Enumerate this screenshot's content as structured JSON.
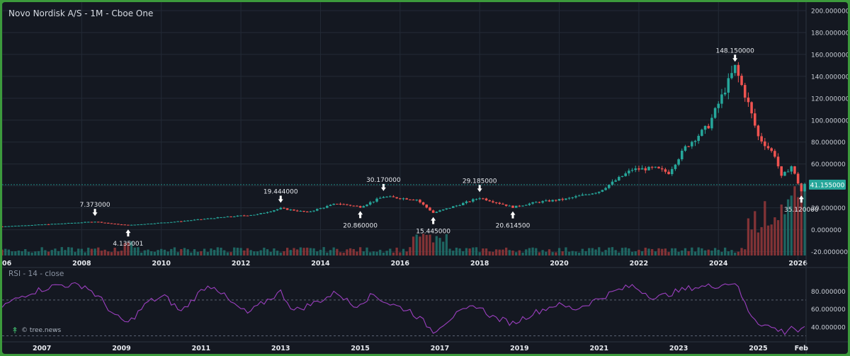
{
  "title": "Novo Nordisk A/S - 1M - Cboe One",
  "rsi_title": "RSI - 14 - close",
  "watermark": "© tree.news",
  "colors": {
    "background": "#141821",
    "up": "#26a69a",
    "down": "#ef5350",
    "rsi": "#9b3fbf",
    "price_line": "#26a69a",
    "grid": "#232a36",
    "frame": "#3c9a3c"
  },
  "chart_data": [
    {
      "type": "candlestick",
      "title": "Novo Nordisk A/S - 1M - Cboe One",
      "x_range": [
        "2006-01",
        "2026-03"
      ],
      "ylim": [
        -30,
        200
      ],
      "y_ticks": [
        200,
        180,
        160,
        140,
        120,
        100,
        80,
        60,
        40,
        20,
        0,
        -20
      ],
      "y_tick_labels": [
        "200.000000",
        "180.000000",
        "160.000000",
        "140.000000",
        "120.000000",
        "100.000000",
        "80.000000",
        "60.000000",
        "40.000000",
        "20.000000",
        "0.000000",
        "-20.000000"
      ],
      "x_tick_labels": [
        "2006",
        "2008",
        "2010",
        "2012",
        "2014",
        "2016",
        "2018",
        "2020",
        "2022",
        "2024",
        "2026"
      ],
      "last_price": 41.155,
      "last_price_label": "41.155000",
      "price_path": [
        {
          "t": "2006-01",
          "v": 3.0
        },
        {
          "t": "2007-06",
          "v": 5.5
        },
        {
          "t": "2008-05",
          "v": 7.373
        },
        {
          "t": "2008-11",
          "v": 5.2
        },
        {
          "t": "2009-03",
          "v": 4.135
        },
        {
          "t": "2010-06",
          "v": 7.5
        },
        {
          "t": "2011-06",
          "v": 11.0
        },
        {
          "t": "2012-06",
          "v": 14.0
        },
        {
          "t": "2013-01",
          "v": 19.444
        },
        {
          "t": "2013-09",
          "v": 16.0
        },
        {
          "t": "2014-06",
          "v": 24.0
        },
        {
          "t": "2015-01",
          "v": 20.86
        },
        {
          "t": "2015-08",
          "v": 30.17
        },
        {
          "t": "2016-06",
          "v": 27.5
        },
        {
          "t": "2016-11",
          "v": 15.445
        },
        {
          "t": "2017-06",
          "v": 22.0
        },
        {
          "t": "2018-01",
          "v": 29.185
        },
        {
          "t": "2018-11",
          "v": 20.6145
        },
        {
          "t": "2019-06",
          "v": 25.0
        },
        {
          "t": "2020-03",
          "v": 28.0
        },
        {
          "t": "2021-01",
          "v": 35.0
        },
        {
          "t": "2021-11",
          "v": 55.0
        },
        {
          "t": "2022-06",
          "v": 56.0
        },
        {
          "t": "2022-10",
          "v": 52.0
        },
        {
          "t": "2023-03",
          "v": 75.0
        },
        {
          "t": "2023-10",
          "v": 95.0
        },
        {
          "t": "2024-06",
          "v": 148.15
        },
        {
          "t": "2024-10",
          "v": 115.0
        },
        {
          "t": "2025-01",
          "v": 85.0
        },
        {
          "t": "2025-06",
          "v": 68.0
        },
        {
          "t": "2025-08",
          "v": 48.0
        },
        {
          "t": "2025-11",
          "v": 58.0
        },
        {
          "t": "2026-02",
          "v": 35.12
        },
        {
          "t": "2026-03",
          "v": 41.155
        }
      ],
      "annotations": [
        {
          "t": "2008-05",
          "v": 7.373,
          "label": "7.373000",
          "kind": "high"
        },
        {
          "t": "2009-03",
          "v": 4.135,
          "label": "4.135001",
          "kind": "low"
        },
        {
          "t": "2013-01",
          "v": 19.444,
          "label": "19.444000",
          "kind": "high"
        },
        {
          "t": "2015-01",
          "v": 20.86,
          "label": "20.860000",
          "kind": "low"
        },
        {
          "t": "2015-08",
          "v": 30.17,
          "label": "30.170000",
          "kind": "high"
        },
        {
          "t": "2016-11",
          "v": 15.445,
          "label": "15.445000",
          "kind": "low"
        },
        {
          "t": "2018-01",
          "v": 29.185,
          "label": "29.185000",
          "kind": "high"
        },
        {
          "t": "2018-11",
          "v": 20.6145,
          "label": "20.614500",
          "kind": "low"
        },
        {
          "t": "2024-06",
          "v": 148.15,
          "label": "148.150000",
          "kind": "high"
        },
        {
          "t": "2026-02",
          "v": 35.12,
          "label": "35.120000",
          "kind": "low"
        }
      ]
    },
    {
      "type": "line",
      "title": "RSI - 14 - close",
      "ylim": [
        28,
        100
      ],
      "y_ticks": [
        80,
        60,
        40
      ],
      "y_tick_labels": [
        "80.000000",
        "60.000000",
        "40.000000"
      ],
      "reference_lines": [
        70,
        30
      ],
      "x_range": [
        "2006-01",
        "2026-03"
      ],
      "x_tick_labels": [
        "2007",
        "2009",
        "2011",
        "2013",
        "2015",
        "2017",
        "2019",
        "2021",
        "2023",
        "2025",
        "Feb"
      ],
      "points": [
        {
          "t": "2006-01",
          "v": 63
        },
        {
          "t": "2006-09",
          "v": 78
        },
        {
          "t": "2007-06",
          "v": 87
        },
        {
          "t": "2008-02",
          "v": 86
        },
        {
          "t": "2008-07",
          "v": 70
        },
        {
          "t": "2008-11",
          "v": 52
        },
        {
          "t": "2009-03",
          "v": 44
        },
        {
          "t": "2009-09",
          "v": 68
        },
        {
          "t": "2010-02",
          "v": 74
        },
        {
          "t": "2010-07",
          "v": 57
        },
        {
          "t": "2011-02",
          "v": 84
        },
        {
          "t": "2011-05",
          "v": 86
        },
        {
          "t": "2011-10",
          "v": 67
        },
        {
          "t": "2012-03",
          "v": 55
        },
        {
          "t": "2012-09",
          "v": 70
        },
        {
          "t": "2013-01",
          "v": 79
        },
        {
          "t": "2013-05",
          "v": 58
        },
        {
          "t": "2013-10",
          "v": 65
        },
        {
          "t": "2014-03",
          "v": 73
        },
        {
          "t": "2014-06",
          "v": 79
        },
        {
          "t": "2014-11",
          "v": 63
        },
        {
          "t": "2015-05",
          "v": 76
        },
        {
          "t": "2015-09",
          "v": 67
        },
        {
          "t": "2016-04",
          "v": 58
        },
        {
          "t": "2016-08",
          "v": 46
        },
        {
          "t": "2016-11",
          "v": 35
        },
        {
          "t": "2017-05",
          "v": 52
        },
        {
          "t": "2017-12",
          "v": 64
        },
        {
          "t": "2018-05",
          "v": 51
        },
        {
          "t": "2018-11",
          "v": 44
        },
        {
          "t": "2019-05",
          "v": 55
        },
        {
          "t": "2019-12",
          "v": 65
        },
        {
          "t": "2020-06",
          "v": 60
        },
        {
          "t": "2020-12",
          "v": 70
        },
        {
          "t": "2021-06",
          "v": 80
        },
        {
          "t": "2021-11",
          "v": 86
        },
        {
          "t": "2022-06",
          "v": 72
        },
        {
          "t": "2022-11",
          "v": 78
        },
        {
          "t": "2023-05",
          "v": 84
        },
        {
          "t": "2023-12",
          "v": 86
        },
        {
          "t": "2024-06",
          "v": 90
        },
        {
          "t": "2024-10",
          "v": 58
        },
        {
          "t": "2025-01",
          "v": 45
        },
        {
          "t": "2025-06",
          "v": 38
        },
        {
          "t": "2025-09",
          "v": 34
        },
        {
          "t": "2025-11",
          "v": 41
        },
        {
          "t": "2026-01",
          "v": 35
        },
        {
          "t": "2026-03",
          "v": 37
        }
      ]
    }
  ]
}
